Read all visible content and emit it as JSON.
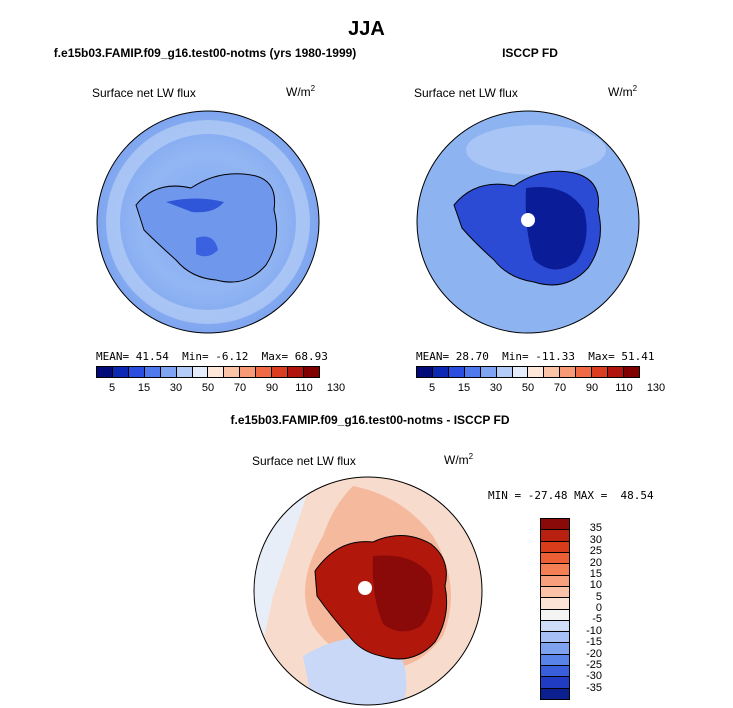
{
  "figure": {
    "title": "JJA",
    "colors": {
      "coastline": "#000000",
      "ocean_blue_light": "#8eb6f0",
      "ocean_blue_mid": "#6a99ee",
      "antarctic_blue_dark": "#0d26b0",
      "diff_red_dark": "#9c0a0a",
      "diff_red_light": "#f4a98a",
      "diff_neutral": "#f7efe8"
    }
  },
  "panels": [
    {
      "subtitle": "f.e15b03.FAMIP.f09_g16.test00-notms (yrs 1980-1999)",
      "variable_label": "Surface net LW flux",
      "units_label": "W/m",
      "units_exp": "2",
      "mean_label": "MEAN=",
      "mean_value": "41.54",
      "min_label": "Min=",
      "min_value": "-6.12",
      "max_label": "Max=",
      "max_value": "68.93"
    },
    {
      "subtitle": "ISCCP FD",
      "variable_label": "Surface net LW flux",
      "units_label": "W/m",
      "units_exp": "2",
      "mean_label": "MEAN=",
      "mean_value": "28.70",
      "min_label": "Min=",
      "min_value": "-11.33",
      "max_label": "Max=",
      "max_value": "51.41"
    }
  ],
  "colorbar_horizontal": {
    "labels": [
      "5",
      "15",
      "30",
      "50",
      "70",
      "90",
      "110",
      "130"
    ],
    "colors": [
      "#010a78",
      "#0b28b4",
      "#2a4fe0",
      "#4f7aee",
      "#7ea3f2",
      "#b4cdf8",
      "#e4ecfb",
      "#fde7da",
      "#fbc4a6",
      "#f79b74",
      "#ef6a45",
      "#da3d1f",
      "#b0140c",
      "#800000"
    ]
  },
  "difference_panel": {
    "subtitle": "f.e15b03.FAMIP.f09_g16.test00-notms - ISCCP FD",
    "variable_label": "Surface net LW flux",
    "units_label": "W/m",
    "units_exp": "2",
    "stats_text": "MIN = -27.48 MAX =  48.54"
  },
  "colorbar_vertical": {
    "labels": [
      "35",
      "30",
      "25",
      "20",
      "15",
      "10",
      "5",
      "0",
      "-5",
      "-10",
      "-15",
      "-20",
      "-25",
      "-30",
      "-35"
    ],
    "colors": [
      "#8a0a0a",
      "#b8210f",
      "#d93c1a",
      "#ec5f34",
      "#f47f55",
      "#f89f7d",
      "#fbc2a7",
      "#fde3d5",
      "#f4f4f4",
      "#cfdcf8",
      "#a7c0f5",
      "#7ea2f0",
      "#5a83ea",
      "#3a5fdc",
      "#1f3cc2",
      "#0b1f8e"
    ]
  }
}
